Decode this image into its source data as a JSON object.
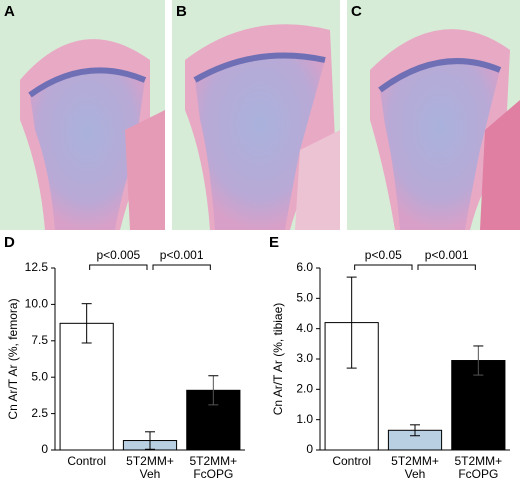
{
  "image_panels": [
    "A",
    "B",
    "C"
  ],
  "chart_data": [
    {
      "type": "bar",
      "panel": "D",
      "y_label": "Cn Ar/T Ar (%, femora)",
      "categories": [
        "Control",
        "5T2MM+\nVeh",
        "5T2MM+\nFcOPG"
      ],
      "values": [
        8.7,
        0.65,
        4.1
      ],
      "error": [
        1.35,
        0.6,
        1.0
      ],
      "colors": [
        "#ffffff",
        "#b9cfe2",
        "#000000"
      ],
      "ylim": [
        0,
        12.5
      ],
      "yticks": [
        0,
        2.5,
        {
          "value": 5,
          "label": "5.0"
        },
        7.5,
        {
          "value": 10,
          "label": "10.0"
        },
        12.5
      ],
      "annotations": [
        "p<0.005",
        "p<0.001"
      ]
    },
    {
      "type": "bar",
      "panel": "E",
      "y_label": "Cn Ar/T Ar (%, tibiae)",
      "categories": [
        "Control",
        "5T2MM+\nVeh",
        "5T2MM+\nFcOPG"
      ],
      "values": [
        4.2,
        0.65,
        2.95
      ],
      "error": [
        1.5,
        0.18,
        0.48
      ],
      "colors": [
        "#ffffff",
        "#b9cfe2",
        "#000000"
      ],
      "ylim": [
        0,
        6
      ],
      "yticks": [
        0,
        {
          "value": 1,
          "label": "1.0"
        },
        {
          "value": 2,
          "label": "2.0"
        },
        {
          "value": 3,
          "label": "3.0"
        },
        {
          "value": 4,
          "label": "4.0"
        },
        {
          "value": 5,
          "label": "5.0"
        },
        {
          "value": 6,
          "label": "6.0"
        }
      ],
      "annotations": [
        "p<0.05",
        "p<0.001"
      ]
    }
  ]
}
